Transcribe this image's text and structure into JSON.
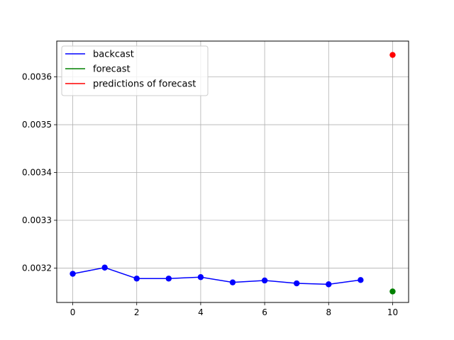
{
  "chart_data": {
    "type": "line",
    "title": "",
    "xlabel": "",
    "ylabel": "",
    "xlim": [
      -0.5,
      10.5
    ],
    "ylim": [
      0.003128,
      0.003675
    ],
    "xticks": [
      0,
      2,
      4,
      6,
      8,
      10
    ],
    "xtick_labels": [
      "0",
      "2",
      "4",
      "6",
      "8",
      "10"
    ],
    "yticks": [
      0.0032,
      0.0033,
      0.0034,
      0.0035,
      0.0036
    ],
    "ytick_labels": [
      "0.0032",
      "0.0033",
      "0.0034",
      "0.0035",
      "0.0036"
    ],
    "grid": true,
    "legend_position": "top-left",
    "series": [
      {
        "name": "backcast",
        "color": "#0000ff",
        "style": "line+markers",
        "x": [
          0,
          1,
          2,
          3,
          4,
          5,
          6,
          7,
          8,
          9
        ],
        "values": [
          0.003188,
          0.003201,
          0.003178,
          0.003178,
          0.003181,
          0.00317,
          0.003174,
          0.003168,
          0.003166,
          0.003175
        ]
      },
      {
        "name": "forecast",
        "color": "#008000",
        "style": "marker",
        "x": [
          10
        ],
        "values": [
          0.003151
        ]
      },
      {
        "name": "predictions of forecast",
        "color": "#ff0000",
        "style": "marker",
        "x": [
          10
        ],
        "values": [
          0.003646
        ]
      }
    ]
  }
}
